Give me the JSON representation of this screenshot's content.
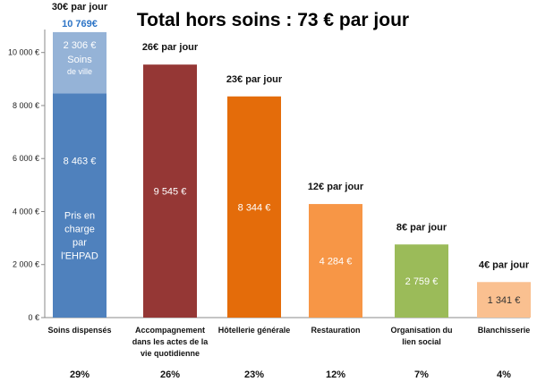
{
  "chart_data": {
    "type": "bar",
    "title": "Total hors soins : 73 € par jour",
    "ylim": [
      0,
      10800
    ],
    "yticks": [
      {
        "v": 0,
        "label": "0 €"
      },
      {
        "v": 2000,
        "label": "2 000 €"
      },
      {
        "v": 4000,
        "label": "4 000 €"
      },
      {
        "v": 6000,
        "label": "6 000 €"
      },
      {
        "v": 8000,
        "label": "8 000 €"
      },
      {
        "v": 10000,
        "label": "10 000 €"
      }
    ],
    "grid": false,
    "bars": [
      {
        "category": [
          "Soins dispensés"
        ],
        "per_day": "30€ par jour",
        "total_label": "10 769€",
        "percent": "29%",
        "segments": [
          {
            "value": 8463,
            "color": "#4f81bd",
            "value_label": "8 463 €",
            "text": [
              "Pris en",
              "charge",
              "par",
              "l'EHPAD"
            ]
          },
          {
            "value": 2306,
            "color": "#95b3d7",
            "value_label": "2 306 €",
            "text": [
              "Soins",
              "de ville"
            ]
          }
        ]
      },
      {
        "category": [
          "Accompagnement",
          "dans les actes de la",
          "vie quotidienne"
        ],
        "per_day": "26€ par jour",
        "percent": "26%",
        "segments": [
          {
            "value": 9545,
            "color": "#953735",
            "value_label": "9 545 €"
          }
        ]
      },
      {
        "category": [
          "Hôtellerie générale"
        ],
        "per_day": "23€ par jour",
        "percent": "23%",
        "segments": [
          {
            "value": 8344,
            "color": "#e46c0a",
            "value_label": "8 344 €"
          }
        ]
      },
      {
        "category": [
          "Restauration"
        ],
        "per_day": "12€ par jour",
        "percent": "12%",
        "segments": [
          {
            "value": 4284,
            "color": "#f79646",
            "value_label": "4 284 €"
          }
        ]
      },
      {
        "category": [
          "Organisation du",
          "lien social"
        ],
        "per_day": "8€ par jour",
        "percent": "7%",
        "segments": [
          {
            "value": 2759,
            "color": "#9bbb59",
            "value_label": "2 759 €"
          }
        ]
      },
      {
        "category": [
          "Blanchisserie"
        ],
        "per_day": "4€ par jour",
        "percent": "4%",
        "segments": [
          {
            "value": 1341,
            "color": "#fac090",
            "value_label": "1 341 €",
            "dark": true
          }
        ]
      }
    ]
  }
}
